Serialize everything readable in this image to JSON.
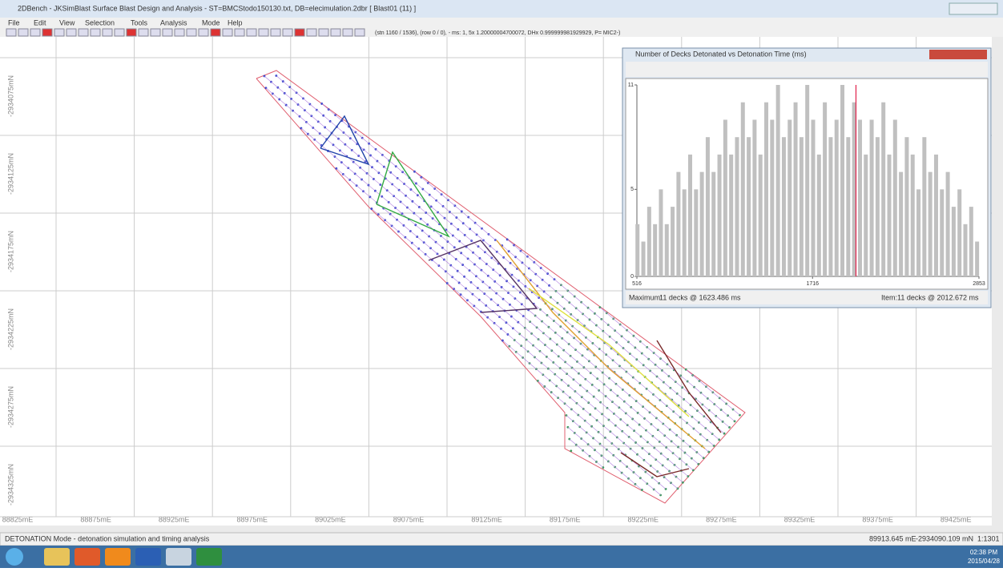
{
  "window": {
    "title": "2DBench - JKSimBlast Surface Blast Design and Analysis - ST=BMCStodo150130.txt, DB=elecimulation.2dbr [ Blast01 (11) ]",
    "menu": [
      "File",
      "Edit",
      "View",
      "Selection",
      "Tools",
      "Analysis",
      "Mode",
      "Help"
    ],
    "toolbar_status": "(stn 1160 / 1536), (row 0 / 0), - ms: 1, 5x 1.20000004700072, DHx 0.999999981929929, P= MIC2-)"
  },
  "plan": {
    "x_labels": [
      "88825mE",
      "88875mE",
      "88925mE",
      "88975mE",
      "89025mE",
      "89075mE",
      "89125mE",
      "89175mE",
      "89225mE",
      "89275mE",
      "89325mE",
      "89375mE",
      "89425mE"
    ],
    "y_labels": [
      "-2934075mN",
      "-2934125mN",
      "-2934175mN",
      "-2934225mN",
      "-2934275mN",
      "-2934325mN"
    ]
  },
  "status_bar": {
    "mode": "DETONATION Mode - detonation simulation and timing analysis",
    "easting": "89913.645 mE",
    "northing": "-2934090.109 mN",
    "scale": "1:1301"
  },
  "taskbar": {
    "time": "02:38 PM",
    "date": "2015/04/28"
  },
  "popup": {
    "title": "Number of Decks Detonated vs Detonation Time (ms)",
    "maximum_label": "Maximum:",
    "maximum": "11 decks @ 1623.486 ms",
    "item_label": "Item:",
    "item": "11 decks @ 2012.672 ms"
  },
  "chart_data": {
    "type": "bar",
    "color": "#c0c0c0",
    "marker_color": "#e0204a",
    "marker_x": 2012.672,
    "x": [
      520,
      560,
      600,
      640,
      680,
      720,
      760,
      800,
      840,
      880,
      920,
      960,
      1000,
      1040,
      1080,
      1120,
      1160,
      1200,
      1240,
      1280,
      1320,
      1360,
      1400,
      1440,
      1480,
      1520,
      1560,
      1600,
      1640,
      1680,
      1720,
      1760,
      1800,
      1840,
      1880,
      1920,
      1960,
      2000,
      2040,
      2080,
      2120,
      2160,
      2200,
      2240,
      2280,
      2320,
      2360,
      2400,
      2440,
      2480,
      2520,
      2560,
      2600,
      2640,
      2680,
      2720,
      2760,
      2800,
      2840
    ],
    "values": [
      3,
      2,
      4,
      3,
      5,
      3,
      4,
      6,
      5,
      7,
      5,
      6,
      8,
      6,
      7,
      9,
      7,
      8,
      10,
      8,
      9,
      7,
      10,
      9,
      11,
      8,
      9,
      10,
      8,
      11,
      9,
      7,
      10,
      8,
      9,
      11,
      8,
      10,
      9,
      7,
      9,
      8,
      10,
      7,
      9,
      6,
      8,
      7,
      5,
      8,
      6,
      7,
      5,
      6,
      4,
      5,
      3,
      4,
      2
    ],
    "xlim": [
      516,
      2853
    ],
    "xticks": [
      516,
      1716,
      2853
    ],
    "ylim": [
      0,
      11
    ],
    "yticks": [
      0,
      5,
      11
    ]
  }
}
